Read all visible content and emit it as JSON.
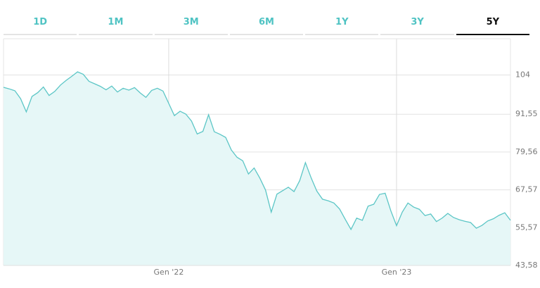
{
  "tabs": [
    "1D",
    "1M",
    "3M",
    "6M",
    "1Y",
    "3Y",
    "5Y"
  ],
  "selected_tab_index": 6,
  "chart_data": {
    "type": "area",
    "color": "#5cc6c6",
    "fill_color": "#e6f7f7",
    "grid": true,
    "categories": [
      null,
      null,
      null,
      null,
      null,
      null,
      null,
      null,
      null,
      null,
      null,
      null,
      null,
      null,
      null,
      null,
      null,
      null,
      null,
      null,
      null,
      null,
      null,
      null,
      null,
      null,
      null,
      null,
      null,
      "Gen '22",
      null,
      null,
      null,
      null,
      null,
      null,
      null,
      null,
      null,
      null,
      null,
      null,
      null,
      null,
      null,
      null,
      null,
      null,
      null,
      null,
      null,
      null,
      null,
      null,
      null,
      null,
      null,
      null,
      null,
      null,
      null,
      null,
      null,
      null,
      null,
      null,
      null,
      null,
      null,
      "Gen '23",
      null,
      null,
      null,
      null,
      null,
      null,
      null,
      null,
      null,
      null,
      null,
      null,
      null,
      null,
      null,
      null,
      null,
      null,
      null,
      null
    ],
    "values": [
      100.1,
      99.6,
      99,
      96.5,
      92.3,
      97.2,
      98.4,
      100.2,
      97.5,
      98.8,
      100.8,
      102.3,
      103.6,
      105,
      104.2,
      102,
      101.2,
      100.4,
      99.3,
      100.5,
      98.6,
      99.8,
      99.2,
      100,
      98.3,
      96.9,
      99.1,
      99.8,
      98.9,
      95,
      91.1,
      92.5,
      91.6,
      89.4,
      85.3,
      86.1,
      91.4,
      86,
      85.2,
      84.2,
      80.2,
      77.9,
      76.8,
      72.6,
      74.5,
      71.3,
      67.5,
      60.5,
      66.2,
      67.3,
      68.4,
      67,
      70.5,
      76.2,
      71.4,
      67.2,
      64.6,
      64.1,
      63.4,
      61.5,
      58.2,
      55,
      58.6,
      57.9,
      62.4,
      63,
      66.1,
      66.5,
      60.9,
      56.2,
      60.5,
      63.4,
      62.1,
      61.4,
      59.4,
      59.9,
      57.5,
      58.6,
      60.1,
      58.8,
      58.1,
      57.6,
      57.2,
      55.4,
      56.3,
      57.7,
      58.4,
      59.5,
      60.3,
      57.9
    ],
    "ylim": [
      43.58,
      115.5
    ],
    "yticks": [
      {
        "value": 43.58,
        "label": "43,58"
      },
      {
        "value": 55.57,
        "label": "55,57"
      },
      {
        "value": 67.57,
        "label": "67,57"
      },
      {
        "value": 79.56,
        "label": "79,56"
      },
      {
        "value": 91.55,
        "label": "91,55"
      },
      104
    ]
  }
}
